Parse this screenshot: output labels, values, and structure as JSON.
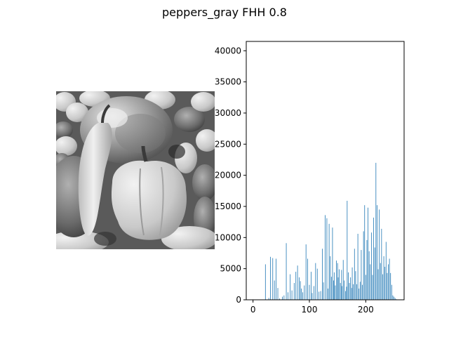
{
  "figure": {
    "title": "peppers_gray FHH 0.8"
  },
  "image_panel": {
    "icon": "peppers-grayscale-photo"
  },
  "chart_data": {
    "type": "bar",
    "title": "",
    "xlabel": "",
    "ylabel": "",
    "xlim": [
      -12,
      268
    ],
    "ylim": [
      0,
      41500
    ],
    "xticks": [
      0,
      100,
      200
    ],
    "yticks": [
      0,
      5000,
      10000,
      15000,
      20000,
      25000,
      30000,
      35000,
      40000
    ],
    "grid": false,
    "color": "#1f77b4",
    "bins": [
      22,
      28,
      31,
      35,
      38,
      41,
      44,
      47,
      52,
      55,
      59,
      62,
      66,
      69,
      73,
      76,
      79,
      82,
      84,
      86,
      88,
      91,
      94,
      97,
      100,
      103,
      105,
      108,
      111,
      114,
      117,
      120,
      123,
      125,
      128,
      131,
      133,
      135,
      137,
      139,
      141,
      143,
      144,
      146,
      148,
      150,
      151,
      153,
      155,
      157,
      158,
      160,
      162,
      164,
      166,
      167,
      169,
      171,
      173,
      175,
      176,
      178,
      180,
      182,
      184,
      186,
      188,
      190,
      192,
      194,
      196,
      198,
      200,
      202,
      204,
      206,
      208,
      210,
      212,
      214,
      216,
      218,
      220,
      222,
      224,
      226,
      228,
      230,
      232,
      234,
      236,
      238,
      240,
      242,
      244,
      246,
      248,
      250,
      252,
      254
    ],
    "values": [
      5700,
      300,
      6900,
      6700,
      3100,
      6600,
      1900,
      200,
      500,
      700,
      9100,
      1200,
      4100,
      1500,
      2700,
      4500,
      5500,
      3600,
      3000,
      1800,
      1200,
      2300,
      8900,
      6600,
      2400,
      4500,
      1100,
      2200,
      5900,
      5000,
      1300,
      1400,
      8200,
      2800,
      13600,
      13100,
      1800,
      12200,
      7000,
      3700,
      11600,
      3100,
      4400,
      2300,
      6300,
      5900,
      3600,
      4900,
      2700,
      4800,
      2200,
      6400,
      3100,
      1400,
      2100,
      15900,
      4400,
      2700,
      3600,
      1900,
      5200,
      2500,
      8200,
      4600,
      2500,
      10600,
      1800,
      2900,
      8000,
      2400,
      11000,
      15200,
      4000,
      9600,
      14800,
      7800,
      5700,
      10800,
      4000,
      13200,
      8400,
      22000,
      15200,
      4900,
      14500,
      5900,
      11400,
      4100,
      7000,
      5300,
      9300,
      4300,
      5700,
      6600,
      4300,
      2400,
      700,
      500,
      300,
      100
    ]
  }
}
